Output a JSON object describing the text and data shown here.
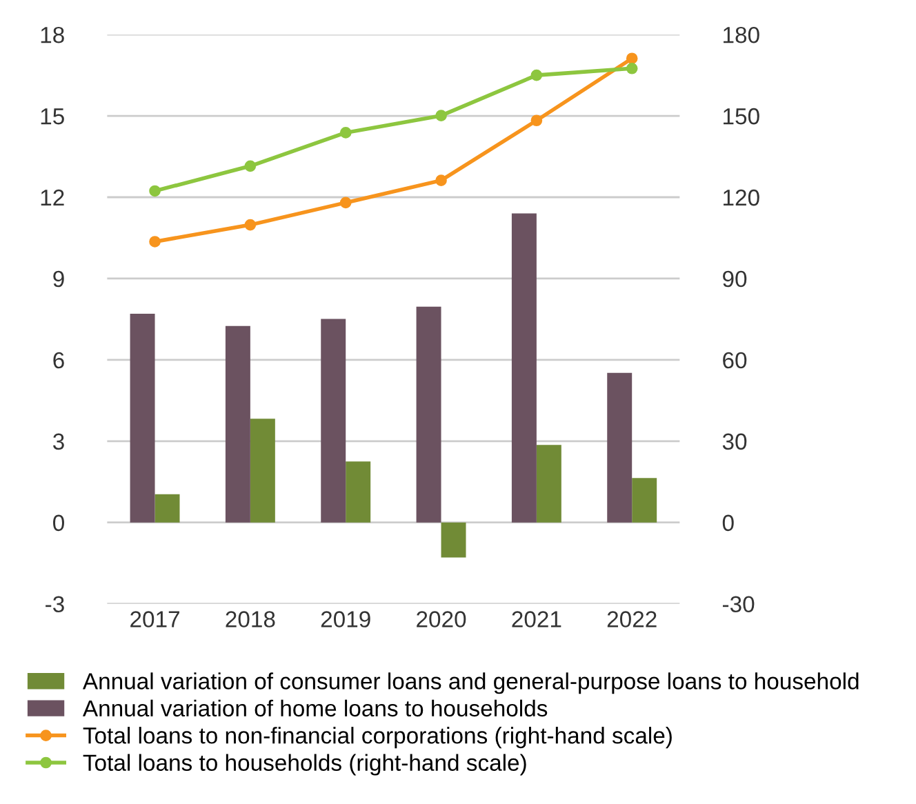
{
  "chart_data": {
    "type": "bar",
    "categories": [
      "2017",
      "2018",
      "2019",
      "2020",
      "2021",
      "2022"
    ],
    "series": [
      {
        "name": "Annual variation of consumer loans and general-purpose loans to household",
        "color": "#718b36",
        "values": [
          1.04,
          3.83,
          2.25,
          -1.29,
          2.86,
          1.64
        ]
      },
      {
        "name": "Annual variation of home loans to households",
        "color": "#6b5260",
        "values": [
          7.7,
          7.25,
          7.51,
          7.96,
          11.4,
          5.52
        ]
      },
      {
        "type": "line",
        "axis": "y2",
        "name": "Total loans to non-financial corporations (right-hand scale)",
        "color": "#f7941d",
        "values": [
          103.6,
          109.8,
          118.0,
          126.2,
          148.3,
          171.2
        ]
      },
      {
        "type": "line",
        "axis": "y2",
        "name": "Total loans to households (right-hand scale)",
        "color": "#8dc63f",
        "values": [
          122.3,
          131.5,
          143.8,
          150.1,
          165.0,
          167.5
        ]
      }
    ],
    "ylim": [
      -3,
      18
    ],
    "yticks": [
      -3,
      0,
      3,
      6,
      9,
      12,
      15,
      18
    ],
    "y2lim": [
      -30,
      180
    ],
    "y2ticks": [
      -30,
      0,
      30,
      60,
      90,
      120,
      150,
      180
    ],
    "grid": "y",
    "legend": "bottom",
    "marker": "circle",
    "line_style": "solid"
  }
}
